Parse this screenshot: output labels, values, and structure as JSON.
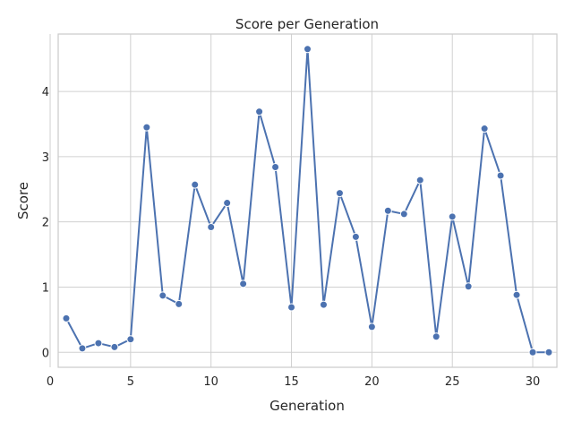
{
  "chart_data": {
    "type": "line",
    "title": "Score per Generation",
    "xlabel": "Generation",
    "ylabel": "Score",
    "xlim": [
      0.5,
      31.5
    ],
    "ylim": [
      -0.23,
      4.88
    ],
    "xticks": [
      0,
      5,
      10,
      15,
      20,
      25,
      30
    ],
    "yticks": [
      0,
      1,
      2,
      3,
      4
    ],
    "grid": true,
    "line_color": "#4c72b0",
    "marker": "circle",
    "series": [
      {
        "name": "Score",
        "x": [
          1,
          2,
          3,
          4,
          5,
          6,
          7,
          8,
          9,
          10,
          11,
          12,
          13,
          14,
          15,
          16,
          17,
          18,
          19,
          20,
          21,
          22,
          23,
          24,
          25,
          26,
          27,
          28,
          29,
          30,
          31
        ],
        "values": [
          0.52,
          0.06,
          0.14,
          0.08,
          0.2,
          3.45,
          0.87,
          0.74,
          2.57,
          1.92,
          2.29,
          1.05,
          3.69,
          2.84,
          0.69,
          4.65,
          0.73,
          2.44,
          1.77,
          0.39,
          2.17,
          2.12,
          2.64,
          0.24,
          2.08,
          1.01,
          3.43,
          2.71,
          0.88,
          0.0,
          0.0
        ]
      }
    ]
  }
}
